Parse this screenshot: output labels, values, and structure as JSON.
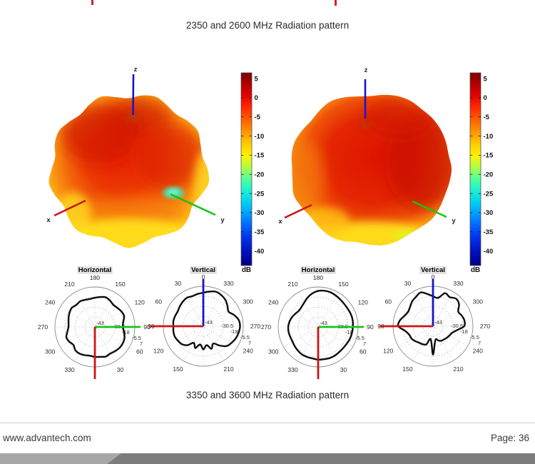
{
  "page": {
    "title_top": "2350 and 2600 MHz Radiation pattern",
    "caption_bottom": "3350 and 3600 MHz Radiation pattern",
    "footer": {
      "website": "www.advantech.com",
      "page_label": "Page: 36"
    },
    "cropped_header_color": "#c4262c"
  },
  "colors": {
    "axis_x_red": "#cc1414",
    "axis_y_green": "#17c417",
    "axis_z_blue": "#1515cc",
    "pattern_black": "#0c0c0c",
    "footer_bar_light": "#a7a7a5",
    "footer_bar_dark": "#7c7c7a"
  },
  "figure": {
    "plots_3d": [
      {
        "id": "3d-pattern-left",
        "axis_x": "x",
        "axis_y": "y",
        "axis_z": "z",
        "outline_r": [
          0.92,
          0.97,
          1.0,
          0.96,
          0.93,
          0.97,
          1.0,
          0.96,
          0.94,
          0.99,
          1.02,
          0.97,
          0.93,
          0.98,
          1.01,
          0.97,
          0.94,
          0.98,
          1.02,
          0.97,
          0.94,
          0.99,
          1.02,
          0.98,
          0.94,
          0.98,
          1.01,
          0.96,
          0.93,
          0.98,
          1.0,
          0.96,
          0.93,
          0.97,
          1.0,
          0.95
        ]
      },
      {
        "id": "3d-pattern-right",
        "axis_x": "x",
        "axis_y": "y",
        "axis_z": "z",
        "outline_r": [
          0.93,
          0.96,
          0.99,
          1.0,
          0.99,
          1.0,
          1.0,
          0.99,
          0.98,
          1.0,
          0.99,
          0.98,
          0.99,
          1.0,
          0.98,
          0.97,
          0.99,
          1.0,
          0.98,
          0.96,
          0.99,
          1.0,
          0.98,
          0.96,
          0.98,
          1.0,
          0.97,
          0.96,
          0.98,
          0.99,
          0.97,
          0.95,
          0.97,
          0.99,
          0.97,
          0.94
        ]
      }
    ],
    "colorbars": [
      {
        "unit": "dB",
        "ticks": [
          5,
          0,
          -5,
          -10,
          -15,
          -20,
          -25,
          -30,
          -35,
          -40
        ]
      },
      {
        "unit": "dB",
        "ticks": [
          5,
          0,
          -5,
          -10,
          -15,
          -20,
          -25,
          -30,
          -35,
          -40
        ]
      }
    ],
    "chart_data": [
      {
        "type": "polar",
        "title": "Horizontal",
        "angle_ticks": [
          [
            "180",
            0
          ],
          [
            "150",
            30
          ],
          [
            "120",
            60
          ],
          [
            "90",
            90
          ],
          [
            "60",
            120
          ],
          [
            "30",
            150
          ],
          [
            "330",
            210
          ],
          [
            "300",
            240
          ],
          [
            "270",
            270
          ],
          [
            "240",
            300
          ],
          [
            "210",
            330
          ]
        ],
        "radial_ticks": [
          "-43",
          "-30.5",
          "-18",
          "-5.5",
          "7"
        ],
        "overlay_axes": [
          {
            "axis": "y",
            "color_name": "green",
            "deg": 90
          },
          {
            "axis": "x",
            "color_name": "red",
            "deg": 180
          }
        ],
        "r_normalized": [
          0.73,
          0.76,
          0.79,
          0.76,
          0.72,
          0.74,
          0.77,
          0.78,
          0.72,
          0.7,
          0.74,
          0.79,
          0.81,
          0.81,
          0.79,
          0.77,
          0.79,
          0.76,
          0.75,
          0.73,
          0.75,
          0.77,
          0.76,
          0.7,
          0.74,
          0.76,
          0.7,
          0.66,
          0.67,
          0.7,
          0.73,
          0.75,
          0.72,
          0.74,
          0.72,
          0.71
        ]
      },
      {
        "type": "polar",
        "title": "Vertical",
        "angle_ticks": [
          [
            "0",
            0
          ],
          [
            "330",
            30
          ],
          [
            "300",
            60
          ],
          [
            "270",
            90
          ],
          [
            "240",
            120
          ],
          [
            "210",
            150
          ],
          [
            "150",
            210
          ],
          [
            "120",
            240
          ],
          [
            "90",
            270
          ],
          [
            "60",
            300
          ],
          [
            "30",
            330
          ]
        ],
        "radial_ticks": [
          "-43",
          "-30.5",
          "-18",
          "-5.5",
          "7"
        ],
        "overlay_axes": [
          {
            "axis": "z",
            "color_name": "blue",
            "deg": 0
          },
          {
            "axis": "x",
            "color_name": "red",
            "deg": 270
          }
        ],
        "r_normalized": [
          0.84,
          0.88,
          0.92,
          0.9,
          0.86,
          0.79,
          0.73,
          0.82,
          0.9,
          0.92,
          0.9,
          0.87,
          0.82,
          0.77,
          0.63,
          0.5,
          0.6,
          0.48,
          0.58,
          0.46,
          0.58,
          0.48,
          0.62,
          0.7,
          0.73,
          0.76,
          0.76,
          0.75,
          0.76,
          0.75,
          0.74,
          0.77,
          0.8,
          0.82,
          0.8,
          0.82
        ]
      },
      {
        "type": "polar",
        "title": "Horizontal",
        "angle_ticks": [
          [
            "180",
            0
          ],
          [
            "150",
            30
          ],
          [
            "120",
            60
          ],
          [
            "90",
            90
          ],
          [
            "60",
            120
          ],
          [
            "30",
            150
          ],
          [
            "330",
            210
          ],
          [
            "300",
            240
          ],
          [
            "270",
            270
          ],
          [
            "240",
            300
          ],
          [
            "210",
            330
          ]
        ],
        "radial_ticks": [
          "-43",
          "-30.5",
          "-18",
          "-5.5",
          "7"
        ],
        "overlay_axes": [
          {
            "axis": "y",
            "color_name": "green",
            "deg": 90
          },
          {
            "axis": "x",
            "color_name": "red",
            "deg": 180
          }
        ],
        "r_normalized": [
          0.9,
          0.92,
          0.92,
          0.9,
          0.88,
          0.87,
          0.87,
          0.88,
          0.88,
          0.87,
          0.86,
          0.85,
          0.83,
          0.82,
          0.82,
          0.83,
          0.83,
          0.82,
          0.82,
          0.8,
          0.8,
          0.8,
          0.78,
          0.76,
          0.74,
          0.74,
          0.75,
          0.75,
          0.73,
          0.7,
          0.66,
          0.63,
          0.65,
          0.7,
          0.78,
          0.85
        ]
      },
      {
        "type": "polar",
        "title": "Vertical",
        "angle_ticks": [
          [
            "0",
            0
          ],
          [
            "330",
            30
          ],
          [
            "300",
            60
          ],
          [
            "270",
            90
          ],
          [
            "240",
            120
          ],
          [
            "210",
            150
          ],
          [
            "150",
            210
          ],
          [
            "120",
            240
          ],
          [
            "90",
            270
          ],
          [
            "60",
            300
          ],
          [
            "30",
            330
          ]
        ],
        "radial_ticks": [
          "-43",
          "-30.5",
          "-18",
          "-5.5",
          "7"
        ],
        "overlay_axes": [
          {
            "axis": "z",
            "color_name": "blue",
            "deg": 0
          },
          {
            "axis": "x",
            "color_name": "red",
            "deg": 270
          }
        ],
        "r_normalized": [
          0.75,
          0.72,
          0.88,
          0.84,
          0.9,
          0.85,
          0.73,
          0.77,
          0.8,
          0.78,
          0.6,
          0.5,
          0.47,
          0.45,
          0.43,
          0.42,
          0.38,
          0.35,
          0.71,
          0.33,
          0.48,
          0.52,
          0.54,
          0.58,
          0.62,
          0.63,
          0.7,
          0.87,
          0.84,
          0.76,
          0.72,
          0.75,
          0.81,
          0.85,
          0.9,
          0.82
        ]
      }
    ]
  }
}
